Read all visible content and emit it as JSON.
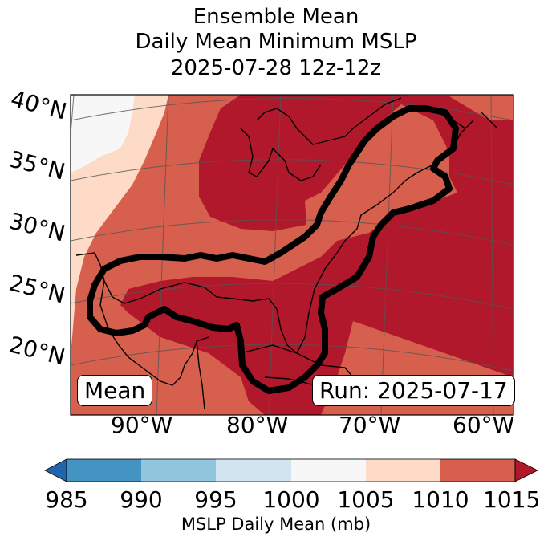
{
  "title": {
    "line1": "Ensemble Mean",
    "line2": "Daily Mean Minimum MSLP",
    "line3": "2025-07-28 12z-12z"
  },
  "lat_labels": [
    "40°N",
    "35°N",
    "30°N",
    "25°N",
    "20°N"
  ],
  "lon_labels": [
    "90°W",
    "80°W",
    "70°W",
    "60°W"
  ],
  "mean_box": "Mean",
  "run_box": "Run: 2025-07-17",
  "colorbar": {
    "label": "MSLP Daily Mean (mb)",
    "ticks": [
      "985",
      "990",
      "995",
      "1000",
      "1005",
      "1010",
      "1015"
    ],
    "colors": [
      "#2166ac",
      "#4393c3",
      "#92c5de",
      "#d1e5f0",
      "#f7f7f7",
      "#fddbc7",
      "#d6604d",
      "#b2182b"
    ]
  }
}
